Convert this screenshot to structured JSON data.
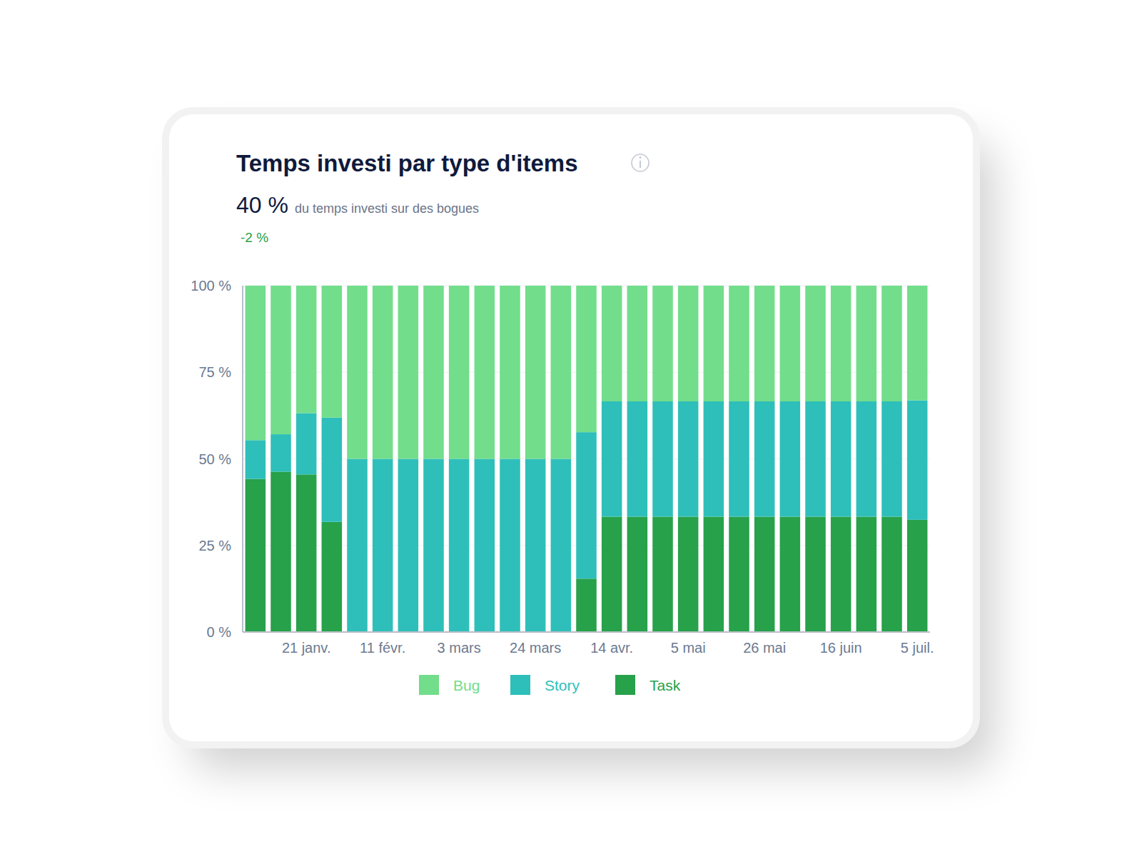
{
  "kpi": {
    "value": "40 %",
    "label": "du temps investi sur des bogues",
    "change": "-2 %"
  },
  "chart_data": {
    "type": "bar",
    "title": "Temps investi par type d'items",
    "stacked": true,
    "grid": true,
    "legend": "bottom",
    "categories": [
      null,
      null,
      "21 janv.",
      null,
      null,
      "11 févr.",
      null,
      null,
      "3 mars",
      null,
      null,
      "24 mars",
      null,
      null,
      "14 avr.",
      null,
      null,
      "5 mai",
      null,
      null,
      "26 mai",
      null,
      null,
      "16 juin",
      null,
      null,
      "5 juil."
    ],
    "ylim": [
      0,
      100
    ],
    "yticks": [
      {
        "value": 0,
        "label": "0 %"
      },
      {
        "value": 25,
        "label": "25 %"
      },
      {
        "value": 50,
        "label": "50 %"
      },
      {
        "value": 75,
        "label": "75 %"
      },
      {
        "value": 100,
        "label": "100 %"
      }
    ],
    "series": [
      {
        "name": "Bug",
        "color": "#72dd8b",
        "values": [
          44.6,
          42.9,
          36.8,
          38.1,
          50,
          50,
          50,
          50,
          50,
          50,
          50,
          50,
          50,
          42.3,
          33.4,
          33.4,
          33.4,
          33.4,
          33.4,
          33.4,
          33.4,
          33.4,
          33.4,
          33.4,
          33.4,
          33.4,
          33.1
        ]
      },
      {
        "name": "Story",
        "color": "#2ebfba",
        "values": [
          11.2,
          10.8,
          17.7,
          30.1,
          50,
          50,
          50,
          50,
          50,
          50,
          50,
          50,
          50,
          42.3,
          33.3,
          33.3,
          33.3,
          33.3,
          33.3,
          33.3,
          33.3,
          33.3,
          33.3,
          33.3,
          33.3,
          33.3,
          34.5
        ]
      },
      {
        "name": "Task",
        "color": "#27a14a",
        "values": [
          44.2,
          46.3,
          45.5,
          31.8,
          0,
          0,
          0,
          0,
          0,
          0,
          0,
          0,
          0,
          15.4,
          33.3,
          33.3,
          33.3,
          33.3,
          33.3,
          33.3,
          33.3,
          33.3,
          33.3,
          33.3,
          33.3,
          33.3,
          32.4
        ]
      }
    ]
  }
}
